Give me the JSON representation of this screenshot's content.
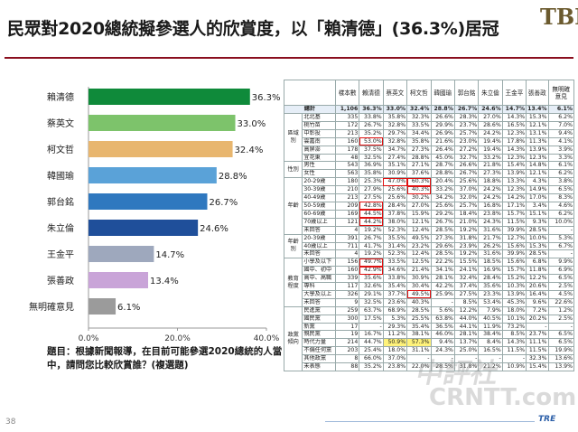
{
  "header": {
    "title": "民眾對2020總統擬參選人的欣賞度，以「賴清德」(36.3%)居冠",
    "logo_text": "TBF"
  },
  "chart_data": {
    "type": "bar",
    "orientation": "horizontal",
    "categories": [
      "賴清德",
      "蔡英文",
      "柯文哲",
      "韓國瑜",
      "郭台銘",
      "朱立倫",
      "王金平",
      "張善政",
      "無明確意見"
    ],
    "values": [
      36.3,
      33.0,
      32.4,
      28.8,
      26.7,
      24.6,
      14.7,
      13.4,
      6.1
    ],
    "data_labels": [
      "36.3%",
      "33.0%",
      "32.4%",
      "28.8%",
      "26.7%",
      "24.6%",
      "14.7%",
      "13.4%",
      "6.1%"
    ],
    "bar_colors": [
      "#0f8a3a",
      "#7dc36b",
      "#e8b66f",
      "#5aa2d8",
      "#2f78bf",
      "#1f4f9a",
      "#9ea8bd",
      "#c9a4d8",
      "#9b9b9b"
    ],
    "xlim": [
      0,
      40
    ],
    "x_ticks": [
      "0.0%",
      "20.0%",
      "40.0%"
    ],
    "grid": false
  },
  "note": "題目：根據新聞報導，在目前可能參選2020總統的人當中，請問您比較欣賞誰？(複選題)",
  "page_number": "38",
  "footer_logo": "TRE",
  "watermark": {
    "line1": "中評社",
    "line2": "CRNTT.com"
  },
  "table": {
    "columns": [
      "樣本數",
      "賴清德",
      "蔡英文",
      "柯文哲",
      "韓國瑜",
      "郭台銘",
      "朱立倫",
      "王金平",
      "張善政",
      "無明確意見"
    ],
    "sections": [
      {
        "group": "",
        "rows": [
          {
            "label": "總計",
            "values": [
              "1,106",
              "36.3%",
              "33.0%",
              "32.4%",
              "28.8%",
              "26.7%",
              "24.6%",
              "14.7%",
              "13.4%",
              "6.1%"
            ]
          }
        ]
      },
      {
        "group": "區域別",
        "rows": [
          {
            "label": "北北基",
            "values": [
              "335",
              "33.8%",
              "35.8%",
              "32.3%",
              "26.6%",
              "28.3%",
              "27.0%",
              "14.3%",
              "15.3%",
              "6.2%"
            ]
          },
          {
            "label": "桃竹苗",
            "values": [
              "172",
              "26.7%",
              "32.8%",
              "33.5%",
              "29.9%",
              "23.7%",
              "28.6%",
              "16.5%",
              "12.1%",
              "7.0%"
            ]
          },
          {
            "label": "中彰投",
            "values": [
              "213",
              "35.2%",
              "29.7%",
              "34.4%",
              "26.9%",
              "25.7%",
              "24.2%",
              "12.3%",
              "13.1%",
              "9.4%"
            ]
          },
          {
            "label": "雲嘉南",
            "values": [
              "160",
              "53.0%",
              "32.8%",
              "35.8%",
              "21.6%",
              "23.0%",
              "19.4%",
              "17.8%",
              "11.3%",
              "4.1%"
            ]
          },
          {
            "label": "高屏澎",
            "values": [
              "178",
              "37.5%",
              "34.7%",
              "27.3%",
              "26.4%",
              "27.2%",
              "19.4%",
              "14.3%",
              "13.9%",
              "3.9%"
            ]
          },
          {
            "label": "宜花東",
            "values": [
              "48",
              "32.5%",
              "27.4%",
              "28.8%",
              "45.0%",
              "32.7%",
              "33.2%",
              "12.3%",
              "12.3%",
              "3.3%"
            ]
          }
        ]
      },
      {
        "group": "性別",
        "rows": [
          {
            "label": "男性",
            "values": [
              "543",
              "36.9%",
              "35.1%",
              "27.1%",
              "28.7%",
              "26.6%",
              "21.8%",
              "15.4%",
              "14.8%",
              "6.1%"
            ]
          },
          {
            "label": "女性",
            "values": [
              "563",
              "35.8%",
              "30.9%",
              "37.6%",
              "28.8%",
              "26.7%",
              "27.3%",
              "13.9%",
              "12.1%",
              "6.2%"
            ]
          }
        ]
      },
      {
        "group": "年齡",
        "rows": [
          {
            "label": "20-29歲",
            "values": [
              "180",
              "25.3%",
              "47.0%",
              "60.3%",
              "20.4%",
              "25.6%",
              "18.8%",
              "13.3%",
              "4.3%",
              "3.8%"
            ]
          },
          {
            "label": "30-39歲",
            "values": [
              "210",
              "27.9%",
              "25.6%",
              "40.3%",
              "33.2%",
              "37.0%",
              "24.2%",
              "12.3%",
              "14.9%",
              "6.5%"
            ]
          },
          {
            "label": "40-49歲",
            "values": [
              "213",
              "27.5%",
              "25.6%",
              "30.2%",
              "34.2%",
              "32.0%",
              "24.2%",
              "14.2%",
              "17.0%",
              "8.3%"
            ]
          },
          {
            "label": "50-59歲",
            "values": [
              "209",
              "42.8%",
              "28.4%",
              "27.0%",
              "25.6%",
              "25.7%",
              "16.8%",
              "17.1%",
              "3.4%",
              "4.6%"
            ]
          },
          {
            "label": "60-69歲",
            "values": [
              "169",
              "44.5%",
              "37.8%",
              "15.9%",
              "29.2%",
              "18.4%",
              "23.8%",
              "15.7%",
              "15.1%",
              "6.2%"
            ]
          },
          {
            "label": "70歲以上",
            "values": [
              "121",
              "44.2%",
              "38.0%",
              "12.1%",
              "26.7%",
              "21.0%",
              "24.3%",
              "11.5%",
              "9.3%",
              "10.0%"
            ]
          },
          {
            "label": "未回答",
            "values": [
              "4",
              "19.2%",
              "52.3%",
              "12.4%",
              "28.5%",
              "19.2%",
              "31.6%",
              "39.9%",
              "28.5%",
              "-"
            ]
          }
        ]
      },
      {
        "group": "年齡別",
        "rows": [
          {
            "label": "20-39歲",
            "values": [
              "391",
              "26.7%",
              "35.5%",
              "49.5%",
              "27.3%",
              "31.8%",
              "21.7%",
              "12.7%",
              "10.0%",
              "5.3%"
            ]
          },
          {
            "label": "40歲以上",
            "values": [
              "711",
              "41.7%",
              "31.4%",
              "23.2%",
              "29.6%",
              "23.9%",
              "26.2%",
              "15.6%",
              "15.3%",
              "6.7%"
            ]
          },
          {
            "label": "未回答",
            "values": [
              "4",
              "19.2%",
              "52.3%",
              "12.4%",
              "28.5%",
              "19.2%",
              "31.6%",
              "39.9%",
              "28.5%",
              "-"
            ]
          }
        ]
      },
      {
        "group": "教育程度",
        "rows": [
          {
            "label": "小學及以下",
            "values": [
              "156",
              "49.7%",
              "33.5%",
              "12.5%",
              "22.2%",
              "15.5%",
              "18.5%",
              "15.6%",
              "6.8%",
              "9.9%"
            ]
          },
          {
            "label": "國中、初中",
            "values": [
              "160",
              "42.9%",
              "34.6%",
              "21.4%",
              "34.1%",
              "24.1%",
              "16.9%",
              "15.7%",
              "11.8%",
              "6.9%"
            ]
          },
          {
            "label": "高中、高職",
            "values": [
              "339",
              "35.6%",
              "33.8%",
              "30.9%",
              "28.1%",
              "32.4%",
              "28.4%",
              "15.2%",
              "12.2%",
              "6.5%"
            ]
          },
          {
            "label": "專科",
            "values": [
              "117",
              "32.6%",
              "35.4%",
              "30.4%",
              "42.2%",
              "37.4%",
              "35.6%",
              "10.3%",
              "20.6%",
              "2.5%"
            ]
          },
          {
            "label": "大學及以上",
            "values": [
              "326",
              "29.1%",
              "37.7%",
              "49.5%",
              "25.9%",
              "27.5%",
              "23.3%",
              "13.9%",
              "16.4%",
              "4.5%"
            ]
          },
          {
            "label": "未回答",
            "values": [
              "9",
              "32.5%",
              "23.6%",
              "40.3%",
              "-",
              "8.5%",
              "53.4%",
              "45.3%",
              "9.6%",
              "22.6%"
            ]
          }
        ]
      },
      {
        "group": "政黨傾向",
        "rows": [
          {
            "label": "民進黨",
            "values": [
              "259",
              "63.7%",
              "68.9%",
              "28.5%",
              "5.6%",
              "12.2%",
              "7.9%",
              "18.0%",
              "7.2%",
              "1.2%"
            ]
          },
          {
            "label": "國民黨",
            "values": [
              "300",
              "17.5%",
              "5.3%",
              "25.5%",
              "63.8%",
              "44.0%",
              "40.5%",
              "10.1%",
              "20.2%",
              "2.5%"
            ]
          },
          {
            "label": "新黨",
            "values": [
              "17",
              "-",
              "29.3%",
              "35.4%",
              "36.5%",
              "44.1%",
              "11.9%",
              "73.2%",
              "-",
              "-"
            ]
          },
          {
            "label": "親民黨",
            "values": [
              "19",
              "16.7%",
              "11.2%",
              "38.1%",
              "46.0%",
              "28.1%",
              "38.4%",
              "8.5%",
              "23.7%",
              "6.5%"
            ]
          },
          {
            "label": "時代力量",
            "values": [
              "214",
              "44.7%",
              "50.9%",
              "57.3%",
              "9.4%",
              "13.7%",
              "8.4%",
              "14.3%",
              "11.1%",
              "6.5%"
            ]
          },
          {
            "label": "不偏任何黨",
            "values": [
              "203",
              "25.4%",
              "18.0%",
              "31.1%",
              "24.3%",
              "25.0%",
              "16.5%",
              "11.5%",
              "11.5%",
              "19.9%"
            ]
          },
          {
            "label": "其他政黨",
            "values": [
              "8",
              "66.0%",
              "37.0%",
              "-",
              "-",
              "-",
              "-",
              "-",
              "32.3%",
              "13.6%"
            ]
          },
          {
            "label": "未表態",
            "values": [
              "88",
              "35.2%",
              "23.8%",
              "22.0%",
              "28.5%",
              "31.8%",
              "21.2%",
              "10.9%",
              "15.4%",
              "13.9%"
            ]
          }
        ]
      }
    ]
  }
}
